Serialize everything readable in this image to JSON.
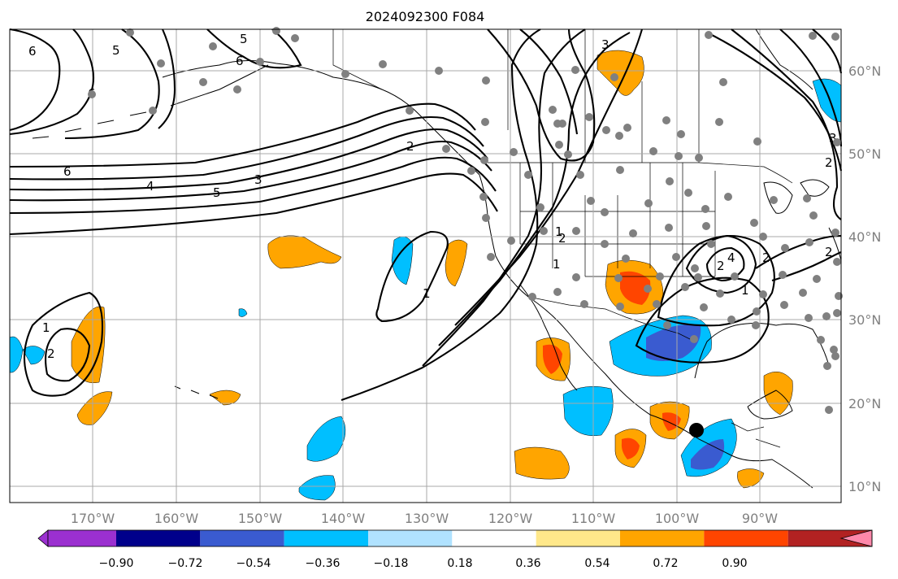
{
  "title": "2024092300 F084",
  "lon_labels": [
    "170°W",
    "160°W",
    "150°W",
    "140°W",
    "130°W",
    "120°W",
    "110°W",
    "100°W",
    "90°W"
  ],
  "lat_labels": [
    "60°N",
    "50°N",
    "40°N",
    "30°N",
    "20°N",
    "10°N"
  ],
  "colorbar": {
    "tick_labels": [
      "−0.90",
      "−0.72",
      "−0.54",
      "−0.36",
      "−0.18",
      "0.18",
      "0.36",
      "0.54",
      "0.72",
      "0.90"
    ],
    "colors": [
      "#9b30d0",
      "#00008b",
      "#3a5bd0",
      "#00bfff",
      "#b0e2ff",
      "#ffffff",
      "#ffe88a",
      "#ffa500",
      "#ff4500",
      "#b22222",
      "#ff88aa"
    ]
  },
  "contour_labels": [
    "6",
    "5",
    "6",
    "5",
    "6",
    "6",
    "4",
    "5",
    "3",
    "2",
    "1",
    "1",
    "1",
    "2",
    "3",
    "2",
    "1",
    "2",
    "2",
    "3",
    "4",
    "2",
    "1",
    "2"
  ],
  "colors": {
    "negative": "#00bfff",
    "negative_strong": "#3a5bd0",
    "positive": "#ffa500",
    "positive_strong": "#ff4500",
    "station": "#808080",
    "marker": "#000000"
  }
}
